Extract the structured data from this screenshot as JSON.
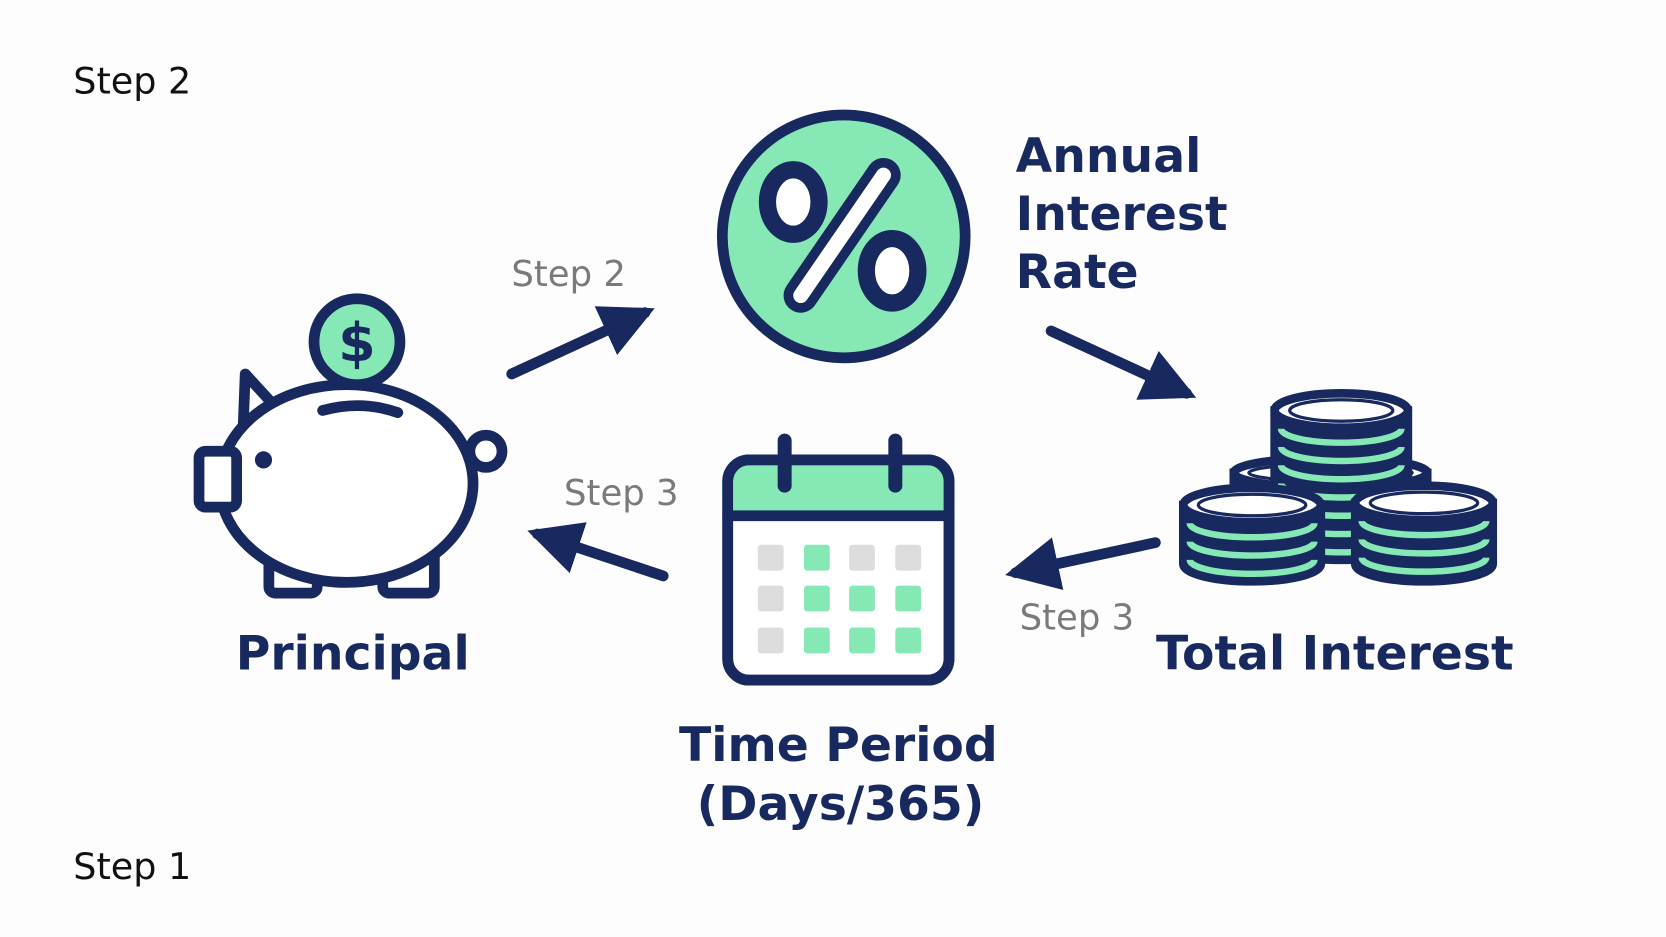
{
  "corner_labels": {
    "top": "Step 2",
    "bottom": "Step 1"
  },
  "nodes": [
    {
      "label": "Principal"
    },
    {
      "label_lines": [
        "Annual",
        "Interest",
        "Rate"
      ]
    },
    {
      "label": "Total Interest"
    },
    {
      "label_lines": [
        "Time Period",
        "(Days/365)"
      ]
    }
  ],
  "arrows": [
    {
      "label": "Step 2"
    },
    {
      "label": "Step 3"
    },
    {
      "label": "Step 3"
    }
  ]
}
